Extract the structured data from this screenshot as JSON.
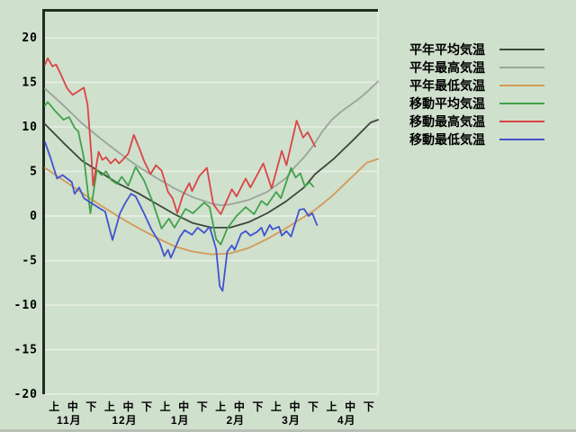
{
  "colors": {
    "background": "#cfe0cc",
    "gridline": "#e9efe8",
    "axis": "#1f2d1f",
    "text": "#000000"
  },
  "chart_data": {
    "type": "line",
    "title": "",
    "grid": true,
    "legend_position": "right",
    "y_axis": {
      "min": -20,
      "max": 20,
      "step": 5,
      "ticks": [
        {
          "value": 20,
          "label": "20"
        },
        {
          "value": 15,
          "label": "15"
        },
        {
          "value": 10,
          "label": "10"
        },
        {
          "value": 5,
          "label": "5"
        },
        {
          "value": 0,
          "label": "0"
        },
        {
          "value": -5,
          "label": "-5"
        },
        {
          "value": -10,
          "label": "-10"
        },
        {
          "value": -15,
          "label": "-15"
        },
        {
          "value": -20,
          "label": "-20"
        }
      ]
    },
    "x_axis": {
      "periods_total": 18,
      "period_labels": [
        "上",
        "中",
        "下"
      ],
      "months": [
        "11月",
        "12月",
        "1月",
        "2月",
        "3月",
        "4月"
      ]
    },
    "series": [
      {
        "key": "normal-mean",
        "name": "平年平均気温",
        "color": "#3d473d",
        "points": [
          [
            0,
            10.3
          ],
          [
            1,
            8.2
          ],
          [
            2,
            6.2
          ],
          [
            3,
            4.9
          ],
          [
            4,
            3.6
          ],
          [
            5,
            2.6
          ],
          [
            6,
            1.4
          ],
          [
            7,
            0.2
          ],
          [
            8,
            -0.8
          ],
          [
            9,
            -1.3
          ],
          [
            10,
            -1.3
          ],
          [
            11,
            -0.7
          ],
          [
            12,
            0.3
          ],
          [
            13,
            1.6
          ],
          [
            14,
            3.2
          ],
          [
            14.6,
            4.7
          ],
          [
            15.6,
            6.4
          ],
          [
            16.6,
            8.4
          ],
          [
            17.6,
            10.5
          ],
          [
            18,
            10.8
          ]
        ]
      },
      {
        "key": "normal-max",
        "name": "平年最高気温",
        "color": "#9aa49a",
        "points": [
          [
            0,
            14.3
          ],
          [
            1,
            12.4
          ],
          [
            2,
            10.4
          ],
          [
            3,
            8.7
          ],
          [
            4,
            7.1
          ],
          [
            5,
            5.6
          ],
          [
            6,
            4.3
          ],
          [
            7,
            3.1
          ],
          [
            8,
            2.1
          ],
          [
            9,
            1.4
          ],
          [
            9.5,
            1.2
          ],
          [
            10,
            1.3
          ],
          [
            11,
            1.8
          ],
          [
            12,
            2.7
          ],
          [
            13,
            4.2
          ],
          [
            13.5,
            5.5
          ],
          [
            14,
            6.6
          ],
          [
            14.5,
            7.9
          ],
          [
            15,
            9.5
          ],
          [
            15.5,
            10.8
          ],
          [
            16,
            11.7
          ],
          [
            17,
            13.2
          ],
          [
            17.5,
            14.1
          ],
          [
            18,
            15.1
          ]
        ]
      },
      {
        "key": "normal-min",
        "name": "平年最低気温",
        "color": "#d49a58",
        "points": [
          [
            0,
            5.4
          ],
          [
            1,
            4.0
          ],
          [
            2,
            2.6
          ],
          [
            3,
            1.2
          ],
          [
            4,
            -0.1
          ],
          [
            5,
            -1.3
          ],
          [
            6,
            -2.4
          ],
          [
            7,
            -3.4
          ],
          [
            8,
            -4.0
          ],
          [
            9,
            -4.3
          ],
          [
            10,
            -4.2
          ],
          [
            11,
            -3.6
          ],
          [
            12,
            -2.6
          ],
          [
            13,
            -1.4
          ],
          [
            14,
            -0.1
          ],
          [
            14.6,
            0.7
          ],
          [
            15.5,
            2.2
          ],
          [
            16.5,
            4.2
          ],
          [
            17.4,
            6.0
          ],
          [
            18,
            6.4
          ]
        ]
      },
      {
        "key": "moving-mean",
        "name": "移動平均気温",
        "color": "#3fa24a",
        "points": [
          [
            0,
            12.4
          ],
          [
            0.15,
            12.8
          ],
          [
            0.5,
            11.9
          ],
          [
            1,
            10.8
          ],
          [
            1.3,
            11.1
          ],
          [
            1.6,
            9.9
          ],
          [
            1.8,
            9.5
          ],
          [
            2.1,
            6.5
          ],
          [
            2.45,
            0.3
          ],
          [
            2.8,
            5.2
          ],
          [
            3.05,
            4.6
          ],
          [
            3.3,
            5.0
          ],
          [
            3.6,
            4.0
          ],
          [
            3.9,
            3.6
          ],
          [
            4.15,
            4.4
          ],
          [
            4.5,
            3.4
          ],
          [
            4.9,
            5.5
          ],
          [
            5.35,
            4.0
          ],
          [
            5.8,
            1.7
          ],
          [
            6.3,
            -1.4
          ],
          [
            6.7,
            -0.3
          ],
          [
            7,
            -1.3
          ],
          [
            7.6,
            0.8
          ],
          [
            8,
            0.3
          ],
          [
            8.6,
            1.5
          ],
          [
            8.9,
            1.0
          ],
          [
            9.25,
            -2.6
          ],
          [
            9.5,
            -3.2
          ],
          [
            9.85,
            -1.4
          ],
          [
            10.35,
            0.0
          ],
          [
            10.85,
            1.0
          ],
          [
            11.3,
            0.2
          ],
          [
            11.7,
            1.7
          ],
          [
            12,
            1.2
          ],
          [
            12.5,
            2.7
          ],
          [
            12.75,
            2.0
          ],
          [
            13.3,
            5.4
          ],
          [
            13.55,
            4.3
          ],
          [
            13.8,
            4.8
          ],
          [
            14.05,
            3.3
          ],
          [
            14.3,
            3.8
          ],
          [
            14.5,
            3.3
          ]
        ]
      },
      {
        "key": "moving-max",
        "name": "移動最高気温",
        "color": "#d94545",
        "points": [
          [
            0,
            17.0
          ],
          [
            0.15,
            17.7
          ],
          [
            0.4,
            16.8
          ],
          [
            0.6,
            17.0
          ],
          [
            0.9,
            15.7
          ],
          [
            1.2,
            14.3
          ],
          [
            1.5,
            13.6
          ],
          [
            1.8,
            14.0
          ],
          [
            2.1,
            14.4
          ],
          [
            2.3,
            12.5
          ],
          [
            2.5,
            7.0
          ],
          [
            2.6,
            3.4
          ],
          [
            2.9,
            7.2
          ],
          [
            3.1,
            6.3
          ],
          [
            3.3,
            6.6
          ],
          [
            3.55,
            5.9
          ],
          [
            3.8,
            6.4
          ],
          [
            4.0,
            5.9
          ],
          [
            4.2,
            6.3
          ],
          [
            4.5,
            7.0
          ],
          [
            4.8,
            9.1
          ],
          [
            5.1,
            7.6
          ],
          [
            5.35,
            6.2
          ],
          [
            5.7,
            4.7
          ],
          [
            6.0,
            5.7
          ],
          [
            6.3,
            5.1
          ],
          [
            6.65,
            2.7
          ],
          [
            6.9,
            2.0
          ],
          [
            7.15,
            0.3
          ],
          [
            7.45,
            2.3
          ],
          [
            7.8,
            3.7
          ],
          [
            7.95,
            2.8
          ],
          [
            8.35,
            4.5
          ],
          [
            8.75,
            5.4
          ],
          [
            9.1,
            1.3
          ],
          [
            9.5,
            0.2
          ],
          [
            10.1,
            3.0
          ],
          [
            10.35,
            2.2
          ],
          [
            10.85,
            4.2
          ],
          [
            11.1,
            3.2
          ],
          [
            11.8,
            5.9
          ],
          [
            12.25,
            3.1
          ],
          [
            12.8,
            7.3
          ],
          [
            13.05,
            5.7
          ],
          [
            13.6,
            10.7
          ],
          [
            13.95,
            8.8
          ],
          [
            14.2,
            9.4
          ],
          [
            14.6,
            7.8
          ]
        ]
      },
      {
        "key": "moving-min",
        "name": "移動最低気温",
        "color": "#4152cf",
        "points": [
          [
            0,
            8.3
          ],
          [
            0.3,
            6.5
          ],
          [
            0.65,
            4.2
          ],
          [
            0.95,
            4.6
          ],
          [
            1.45,
            3.8
          ],
          [
            1.6,
            2.5
          ],
          [
            1.85,
            3.2
          ],
          [
            2.1,
            2.0
          ],
          [
            2.4,
            1.6
          ],
          [
            2.7,
            1.2
          ],
          [
            3.0,
            0.8
          ],
          [
            3.25,
            0.5
          ],
          [
            3.65,
            -2.7
          ],
          [
            4.05,
            0.3
          ],
          [
            4.35,
            1.5
          ],
          [
            4.65,
            2.5
          ],
          [
            4.9,
            2.2
          ],
          [
            5.35,
            0.3
          ],
          [
            5.75,
            -1.5
          ],
          [
            6.2,
            -3.0
          ],
          [
            6.45,
            -4.5
          ],
          [
            6.65,
            -3.8
          ],
          [
            6.8,
            -4.7
          ],
          [
            7.3,
            -2.3
          ],
          [
            7.55,
            -1.6
          ],
          [
            7.95,
            -2.1
          ],
          [
            8.25,
            -1.3
          ],
          [
            8.6,
            -1.9
          ],
          [
            8.9,
            -1.2
          ],
          [
            9.25,
            -3.7
          ],
          [
            9.45,
            -7.9
          ],
          [
            9.6,
            -8.4
          ],
          [
            9.85,
            -4.0
          ],
          [
            10.1,
            -3.3
          ],
          [
            10.25,
            -3.8
          ],
          [
            10.6,
            -2.0
          ],
          [
            10.85,
            -1.7
          ],
          [
            11.1,
            -2.2
          ],
          [
            11.45,
            -1.8
          ],
          [
            11.7,
            -1.3
          ],
          [
            11.85,
            -2.2
          ],
          [
            12.15,
            -1.0
          ],
          [
            12.3,
            -1.5
          ],
          [
            12.65,
            -1.2
          ],
          [
            12.8,
            -2.2
          ],
          [
            13.05,
            -1.7
          ],
          [
            13.3,
            -2.3
          ],
          [
            13.75,
            0.7
          ],
          [
            14.0,
            0.8
          ],
          [
            14.25,
            0.0
          ],
          [
            14.45,
            0.3
          ],
          [
            14.7,
            -1.0
          ]
        ]
      }
    ]
  }
}
